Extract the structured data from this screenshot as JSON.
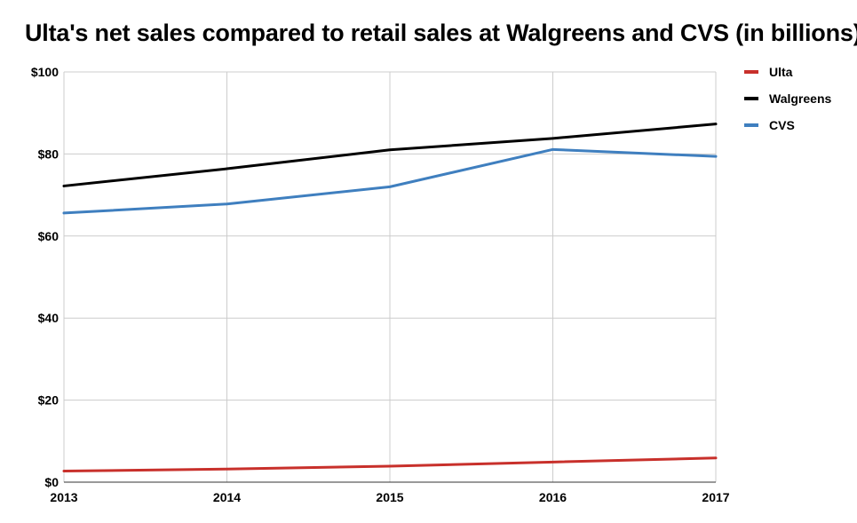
{
  "chart_data": {
    "type": "line",
    "title": "Ulta's net sales compared to retail sales at Walgreens and CVS (in billions)",
    "xlabel": "",
    "ylabel": "",
    "categories": [
      "2013",
      "2014",
      "2015",
      "2016",
      "2017"
    ],
    "ylim": [
      0,
      100
    ],
    "yticks": [
      0,
      20,
      40,
      60,
      80,
      100
    ],
    "ytick_labels": [
      "$0",
      "$20",
      "$40",
      "$60",
      "$80",
      "$100"
    ],
    "grid": true,
    "legend_position": "top-right",
    "series": [
      {
        "name": "Ulta",
        "color": "#c8302b",
        "values": [
          2.7,
          3.2,
          3.9,
          4.9,
          5.9
        ]
      },
      {
        "name": "Walgreens",
        "color": "#000000",
        "values": [
          72.2,
          76.4,
          81.0,
          83.8,
          87.3
        ]
      },
      {
        "name": "CVS",
        "color": "#3f7fbf",
        "values": [
          65.6,
          67.8,
          72.0,
          81.1,
          79.4
        ]
      }
    ]
  }
}
